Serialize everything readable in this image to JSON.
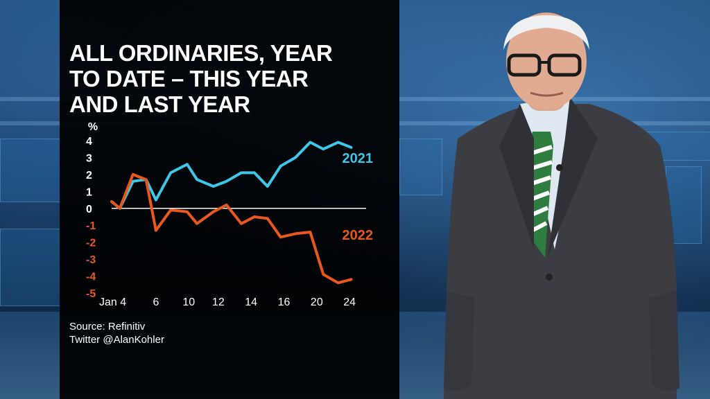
{
  "title_lines": [
    "ALL ORDINARIES, YEAR",
    "TO DATE – THIS YEAR",
    "AND LAST YEAR"
  ],
  "source": "Source: Refinitiv",
  "twitter": "Twitter @AlanKohler",
  "colors": {
    "series_2021": "#3ec6e6",
    "series_2022": "#e8581e",
    "positive_tick": "#ffffff",
    "negative_tick": "#e8581e",
    "zero_line": "#ffffff",
    "panel_bg": "#000000"
  },
  "chart_data": {
    "type": "line",
    "xlabel": "",
    "ylabel": "%",
    "ylim": [
      -5,
      4
    ],
    "yticks": [
      4,
      3,
      2,
      1,
      0,
      -1,
      -2,
      -3,
      -4,
      -5
    ],
    "xlim": [
      0,
      15
    ],
    "xticks": [
      {
        "x": 0,
        "label": "Jan 4"
      },
      {
        "x": 2.7,
        "label": "6"
      },
      {
        "x": 4.7,
        "label": "10"
      },
      {
        "x": 6.5,
        "label": "12"
      },
      {
        "x": 8.5,
        "label": "14"
      },
      {
        "x": 10.5,
        "label": "16"
      },
      {
        "x": 12.5,
        "label": "20"
      },
      {
        "x": 14.5,
        "label": "24"
      }
    ],
    "grid": false,
    "series": [
      {
        "name": "2021",
        "x": [
          0,
          0.5,
          1.3,
          2.1,
          2.7,
          3.6,
          4.6,
          5.2,
          6.2,
          7.0,
          7.9,
          8.7,
          9.5,
          10.3,
          11.2,
          12.1,
          12.9,
          13.8,
          14.6
        ],
        "values": [
          0.4,
          0.0,
          1.6,
          1.7,
          0.5,
          2.1,
          2.6,
          1.7,
          1.3,
          1.6,
          2.1,
          2.1,
          1.3,
          2.5,
          3.0,
          3.9,
          3.5,
          3.9,
          3.6
        ]
      },
      {
        "name": "2022",
        "x": [
          0,
          0.5,
          1.3,
          2.1,
          2.7,
          3.6,
          4.6,
          5.2,
          6.2,
          7.0,
          7.9,
          8.7,
          9.5,
          10.3,
          11.2,
          12.1,
          12.9,
          13.8,
          14.6
        ],
        "values": [
          0.4,
          0.0,
          2.0,
          1.7,
          -1.3,
          -0.1,
          -0.2,
          -0.9,
          -0.2,
          0.2,
          -0.9,
          -0.5,
          -0.6,
          -1.7,
          -1.5,
          -1.4,
          -3.9,
          -4.4,
          -4.2
        ]
      }
    ]
  }
}
